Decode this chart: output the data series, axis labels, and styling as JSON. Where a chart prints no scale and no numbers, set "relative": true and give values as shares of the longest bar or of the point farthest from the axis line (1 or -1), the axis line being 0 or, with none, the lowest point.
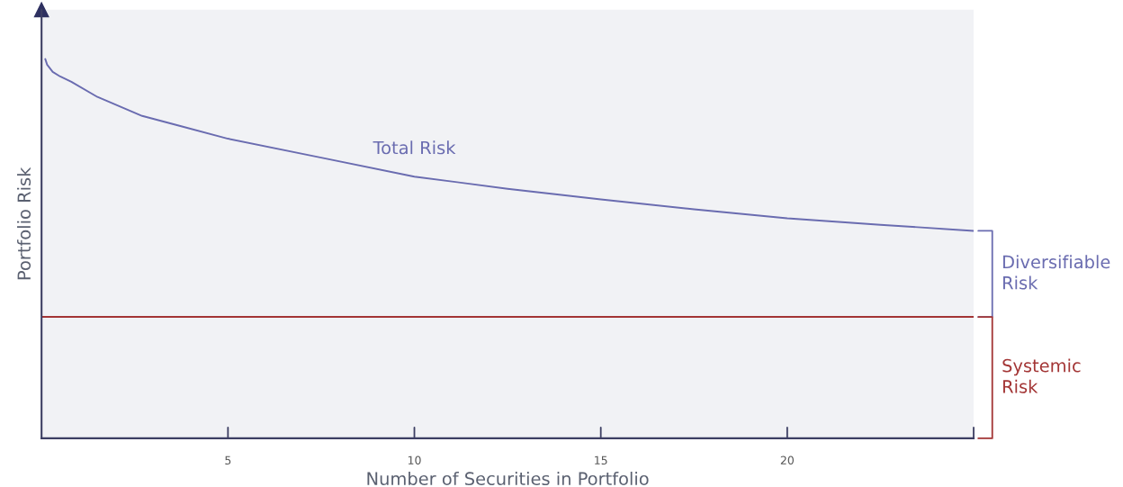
{
  "chart_data": {
    "type": "line",
    "relative": true,
    "xlabel": "Number of Securities in Portfolio",
    "ylabel": "Portfolio Risk",
    "xlim": [
      0,
      25
    ],
    "xticks": [
      5,
      10,
      15,
      20,
      {
        "value": 25,
        "label": null
      }
    ],
    "grid": false,
    "tick_labels": "x",
    "marker": "none",
    "line_style": "solid",
    "series": [
      {
        "name": "Total Risk",
        "color": "#6a6cb0",
        "x": [
          0.1,
          0.15,
          0.3,
          0.5,
          0.8,
          1.5,
          2.7,
          3.7,
          5,
          7.5,
          10,
          12.5,
          15,
          17.5,
          20,
          22.5,
          25
        ],
        "values": [
          1,
          0.985,
          0.966,
          0.954,
          0.94,
          0.9,
          0.85,
          0.824,
          0.79,
          0.74,
          0.69,
          0.658,
          0.63,
          0.604,
          0.58,
          0.563,
          0.547
        ]
      },
      {
        "color": "#a33535",
        "x": [
          0,
          25
        ],
        "values": [
          0.32,
          0.32
        ]
      }
    ],
    "annotations": [
      "Diversifiable Risk",
      "Systemic Risk"
    ]
  }
}
